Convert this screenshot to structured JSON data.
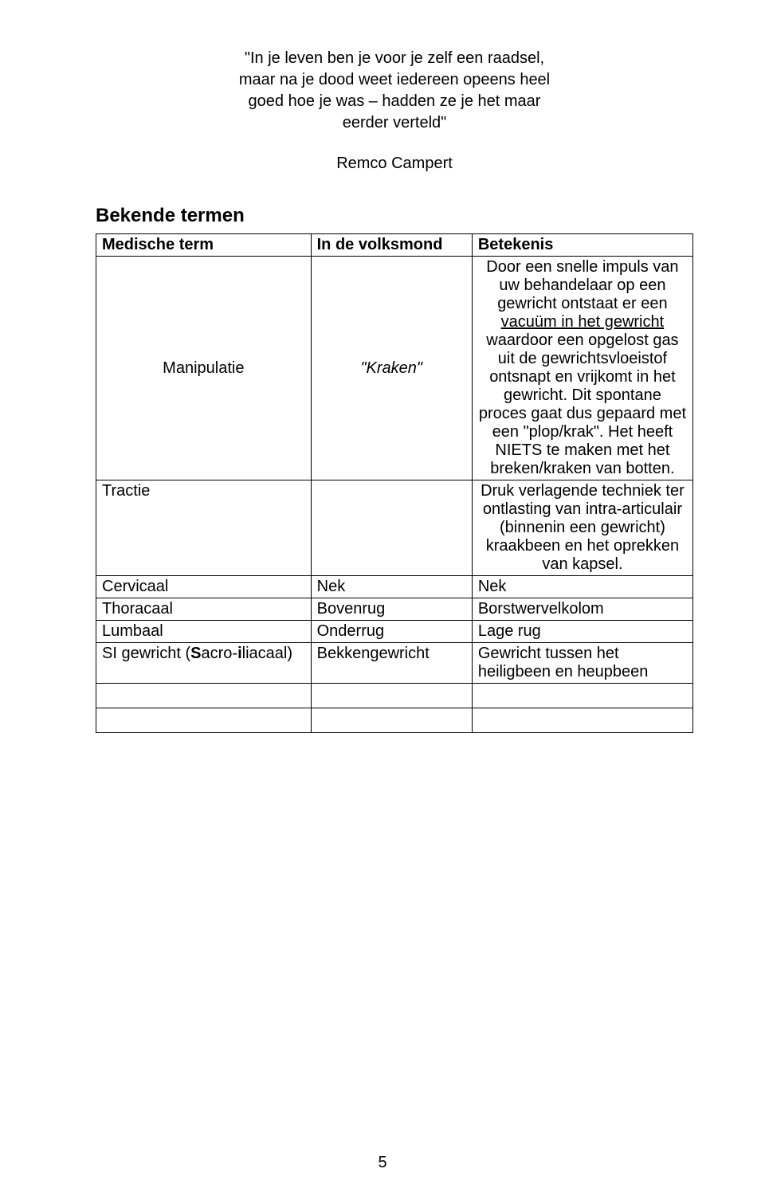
{
  "quote": {
    "line1": "\"In je leven ben je voor je zelf een raadsel,",
    "line2": "maar na je dood weet iedereen opeens heel",
    "line3": "goed hoe je was – hadden ze je het maar",
    "line4": "eerder verteld\"",
    "attribution": "Remco Campert"
  },
  "heading": "Bekende termen",
  "table": {
    "headers": {
      "c1": "Medische term",
      "c2": "In de volksmond",
      "c3": "Betekenis"
    },
    "rows": [
      {
        "c1": "Manipulatie",
        "c2_html": "<span class=\"italic-underline\">\"Kraken\"</span>",
        "c3_html": "Door een snelle impuls van uw behandelaar op een gewricht ontstaat er een <span class=\"underline\">vacuüm in het gewricht</span> waardoor een opgelost gas uit de gewrichtsvloeistof ontsnapt en vrijkomt in het gewricht. Dit spontane proces gaat dus gepaard met een \"plop/krak\". Het heeft NIETS te maken met het breken/kraken van botten.",
        "c1_center": true,
        "c3_center": true
      },
      {
        "c1": "Tractie",
        "c2_html": "",
        "c3_html": "Druk verlagende techniek ter ontlasting van intra-articulair (binnenin een gewricht) kraakbeen en het oprekken van kapsel.",
        "c3_center": true
      },
      {
        "c1": "Cervicaal",
        "c2_html": "Nek",
        "c3_html": "Nek"
      },
      {
        "c1": "Thoracaal",
        "c2_html": "Bovenrug",
        "c3_html": "Borstwervelkolom"
      },
      {
        "c1": "Lumbaal",
        "c2_html": "Onderrug",
        "c3_html": "Lage rug"
      },
      {
        "c1_html": "SI gewricht (<b>S</b>acro-<b>i</b>liacaal)",
        "c2_html": "Bekkengewricht",
        "c3_html": "Gewricht tussen het heiligbeen en heupbeen"
      }
    ]
  },
  "pageNumber": "5"
}
